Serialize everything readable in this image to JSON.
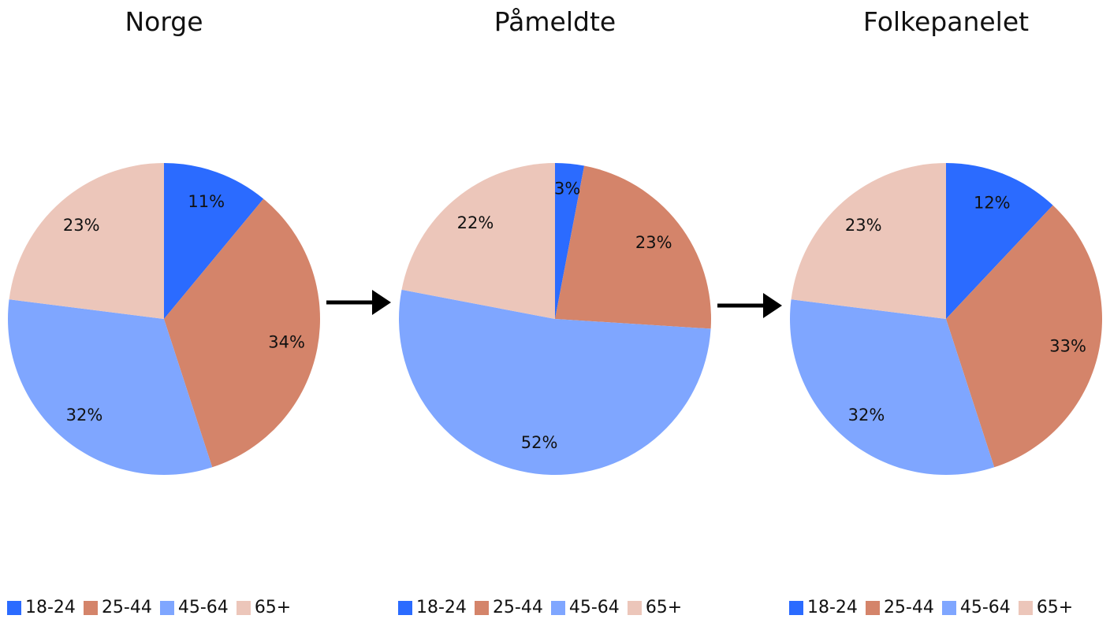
{
  "colors": {
    "18-24": "#2b6bff",
    "25-44": "#d4846a",
    "45-64": "#7fa6ff",
    "65+": "#ecc6ba"
  },
  "chart_data": [
    {
      "type": "pie",
      "title": "Norge",
      "categories": [
        "18-24",
        "25-44",
        "45-64",
        "65+"
      ],
      "values": [
        11,
        34,
        32,
        23
      ],
      "labels": [
        "11%",
        "34%",
        "32%",
        "23%"
      ],
      "legend": "bottom"
    },
    {
      "type": "pie",
      "title": "Påmeldte",
      "categories": [
        "18-24",
        "25-44",
        "45-64",
        "65+"
      ],
      "values": [
        3,
        23,
        52,
        22
      ],
      "labels": [
        "3%",
        "23%",
        "52%",
        "22%"
      ],
      "legend": "bottom"
    },
    {
      "type": "pie",
      "title": "Folkepanelet",
      "categories": [
        "18-24",
        "25-44",
        "45-64",
        "65+"
      ],
      "values": [
        12,
        33,
        32,
        23
      ],
      "labels": [
        "12%",
        "33%",
        "32%",
        "23%"
      ],
      "legend": "bottom"
    }
  ]
}
